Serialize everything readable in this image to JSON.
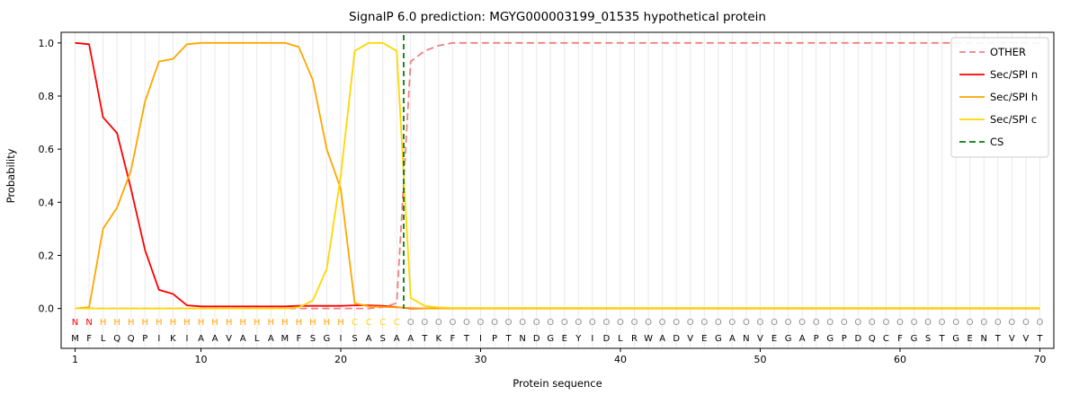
{
  "figure": {
    "title": "SignalP 6.0 prediction: MGYG000003199_01535 hypothetical protein"
  },
  "chart_data": {
    "type": "line",
    "title": "SignalP 6.0 prediction: MGYG000003199_01535 hypothetical protein",
    "xlabel": "Protein sequence",
    "ylabel": "Probability",
    "xlim": [
      0,
      71
    ],
    "ylim": [
      -0.15,
      1.04
    ],
    "xticks": [
      1,
      10,
      20,
      30,
      40,
      50,
      60,
      70
    ],
    "yticks": [
      0.0,
      0.2,
      0.4,
      0.6,
      0.8,
      1.0
    ],
    "n_positions": 70,
    "grid": true,
    "grid_color": "#e9e9e9",
    "legend_position": "upper right",
    "sequence": "MFLQQPIKIAAVALAMFSGISASAATKFTIPTNDGEYIDLRWADVEGANVEGAPGPDQCFGSTGENTVVT",
    "region_labels": "NNHHHHHHHHHHHHHHHHHHCCCCOOOOOOOOOOOOOOOOOOOOOOOOOOOOOOOOOOOOOOOOOOOOOO",
    "region_colors": {
      "N": "#ff0000",
      "H": "#ffa500",
      "C": "#ffd700",
      "O": "#909090"
    },
    "series": [
      {
        "key": "other",
        "name": "OTHER",
        "color": "#f08080",
        "dash": true,
        "values": [
          0,
          0,
          0,
          0,
          0,
          0,
          0,
          0,
          0,
          0,
          0,
          0,
          0,
          0,
          0,
          0,
          0,
          0,
          0,
          0,
          0,
          0,
          0.005,
          0.02,
          0.93,
          0.97,
          0.99,
          1.0,
          1.0,
          1.0,
          1.0,
          1.0,
          1.0,
          1.0,
          1.0,
          1.0,
          1.0,
          1.0,
          1.0,
          1.0,
          1.0,
          1.0,
          1.0,
          1.0,
          1.0,
          1.0,
          1.0,
          1.0,
          1.0,
          1.0,
          1.0,
          1.0,
          1.0,
          1.0,
          1.0,
          1.0,
          1.0,
          1.0,
          1.0,
          1.0,
          1.0,
          1.0,
          1.0,
          1.0,
          1.0,
          1.0,
          1.0,
          1.0,
          1.0,
          1.0
        ]
      },
      {
        "key": "sec-spi-n",
        "name": "Sec/SPI n",
        "color": "#ff0000",
        "dash": false,
        "values": [
          1.0,
          0.995,
          0.72,
          0.66,
          0.45,
          0.22,
          0.07,
          0.055,
          0.012,
          0.008,
          0.008,
          0.008,
          0.008,
          0.008,
          0.008,
          0.008,
          0.01,
          0.01,
          0.01,
          0.01,
          0.012,
          0.012,
          0.01,
          0.005,
          0,
          0,
          0,
          0,
          0,
          0,
          0,
          0,
          0,
          0,
          0,
          0,
          0,
          0,
          0,
          0,
          0,
          0,
          0,
          0,
          0,
          0,
          0,
          0,
          0,
          0,
          0,
          0,
          0,
          0,
          0,
          0,
          0,
          0,
          0,
          0,
          0,
          0,
          0,
          0,
          0,
          0,
          0,
          0,
          0,
          0
        ]
      },
      {
        "key": "sec-spi-h",
        "name": "Sec/SPI h",
        "color": "#ffa500",
        "dash": false,
        "values": [
          0,
          0.005,
          0.3,
          0.38,
          0.52,
          0.78,
          0.93,
          0.94,
          0.995,
          1.0,
          1.0,
          1.0,
          1.0,
          1.0,
          1.0,
          1.0,
          0.985,
          0.86,
          0.6,
          0.45,
          0.02,
          0.008,
          0.006,
          0.004,
          0.002,
          0,
          0,
          0,
          0,
          0,
          0,
          0,
          0,
          0,
          0,
          0,
          0,
          0,
          0,
          0,
          0,
          0,
          0,
          0,
          0,
          0,
          0,
          0,
          0,
          0,
          0,
          0,
          0,
          0,
          0,
          0,
          0,
          0,
          0,
          0,
          0,
          0,
          0,
          0,
          0,
          0,
          0,
          0,
          0,
          0
        ]
      },
      {
        "key": "sec-spi-c",
        "name": "Sec/SPI c",
        "color": "#ffd700",
        "dash": false,
        "values": [
          0,
          0,
          0,
          0,
          0,
          0,
          0,
          0,
          0,
          0,
          0,
          0,
          0,
          0,
          0,
          0,
          0.005,
          0.03,
          0.15,
          0.5,
          0.97,
          1.0,
          1.0,
          0.97,
          0.04,
          0.01,
          0.004,
          0.002,
          0.002,
          0.002,
          0.002,
          0.002,
          0.002,
          0.002,
          0.002,
          0.002,
          0.002,
          0.002,
          0.002,
          0.002,
          0.002,
          0.002,
          0.002,
          0.002,
          0.002,
          0.002,
          0.002,
          0.002,
          0.002,
          0.002,
          0.002,
          0.002,
          0.002,
          0.002,
          0.002,
          0.002,
          0.002,
          0.002,
          0.002,
          0.002,
          0.002,
          0.002,
          0.002,
          0.002,
          0.002,
          0.002,
          0.002,
          0.002,
          0.002,
          0.002
        ]
      }
    ],
    "cs_marker": {
      "key": "cs",
      "name": "CS",
      "color": "#0a7d0a",
      "dash": true,
      "position": 24.5
    }
  }
}
